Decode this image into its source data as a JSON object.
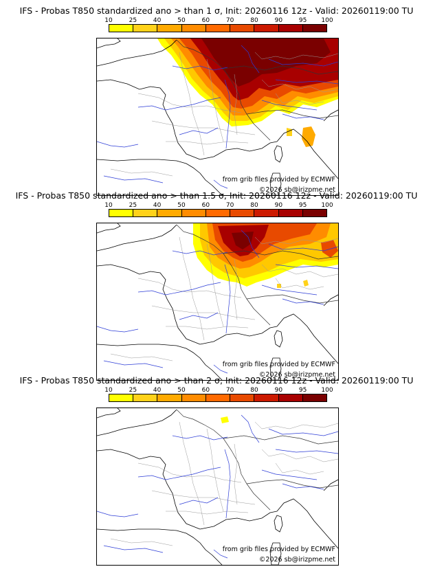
{
  "colorbar": {
    "ticks": [
      "10",
      "25",
      "40",
      "50",
      "60",
      "70",
      "80",
      "90",
      "95",
      "100"
    ],
    "colors": [
      "#ffff00",
      "#ffd21a",
      "#ffaa00",
      "#ff8c00",
      "#ff6a00",
      "#e84a00",
      "#cc1a00",
      "#a80000",
      "#7a0000"
    ]
  },
  "credits": {
    "source": "from grib files provided by ECMWF",
    "copyright": "©2026 sb@irizpme.net"
  },
  "panels": [
    {
      "title": "IFS - Probas T850  standardized ano > than 1 σ, Init: 20260116 12z - Valid: 20260119:00 TU"
    },
    {
      "title": "IFS - Probas T850  standardized ano > than 1.5 σ, Init: 20260116 12z - Valid: 20260119:00 TU"
    },
    {
      "title": "IFS - Probas T850  standardized ano > than 2 σ, Init: 20260116 12z - Valid: 20260119:00 TU"
    }
  ]
}
